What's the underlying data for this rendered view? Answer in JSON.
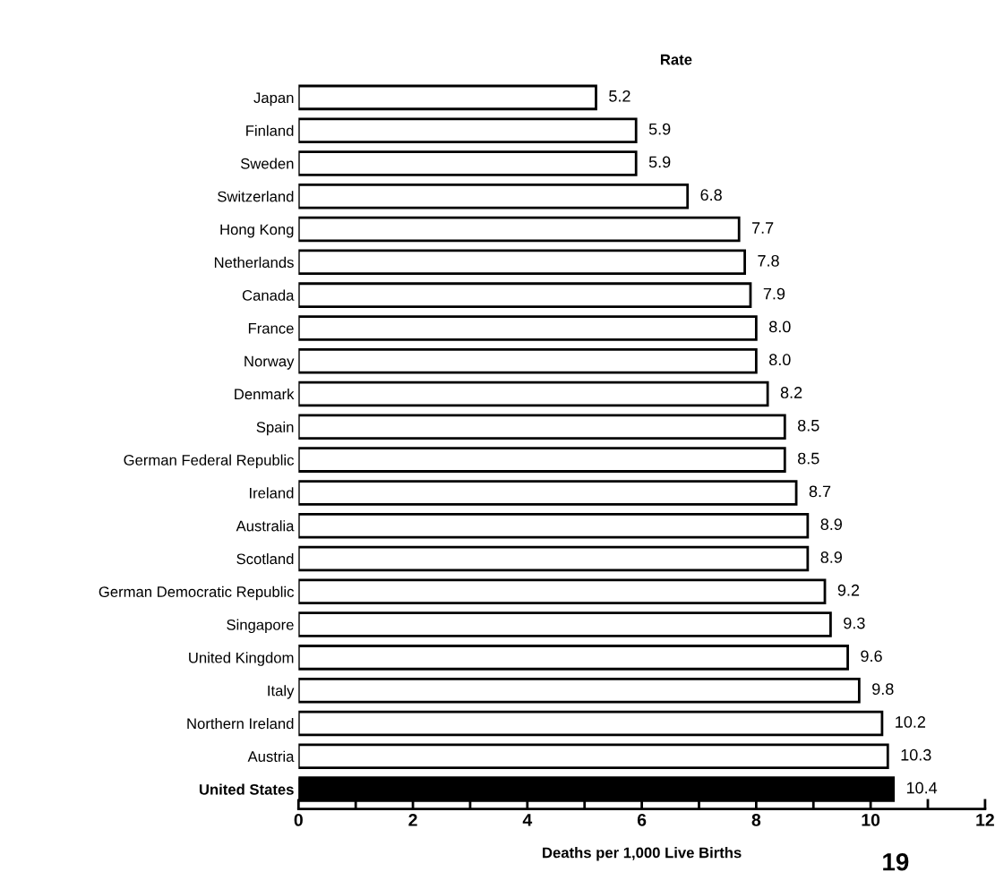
{
  "chart_data": {
    "type": "bar",
    "orientation": "horizontal",
    "xlabel": "Deaths per 1,000 Live Births",
    "categories": [
      "Japan",
      "Finland",
      "Sweden",
      "Switzerland",
      "Hong Kong",
      "Netherlands",
      "Canada",
      "France",
      "Norway",
      "Denmark",
      "Spain",
      "German Federal Republic",
      "Ireland",
      "Australia",
      "Scotland",
      "German Democratic Republic",
      "Singapore",
      "United Kingdom",
      "Italy",
      "Northern Ireland",
      "Austria",
      "United States"
    ],
    "values": [
      5.2,
      5.9,
      5.9,
      6.8,
      7.7,
      7.8,
      7.9,
      8.0,
      8.0,
      8.2,
      8.5,
      8.5,
      8.7,
      8.9,
      8.9,
      9.2,
      9.3,
      9.6,
      9.8,
      10.2,
      10.3,
      10.4
    ],
    "colors": [
      "#ffffff",
      "#ffffff",
      "#ffffff",
      "#ffffff",
      "#ffffff",
      "#ffffff",
      "#ffffff",
      "#ffffff",
      "#ffffff",
      "#ffffff",
      "#ffffff",
      "#ffffff",
      "#ffffff",
      "#ffffff",
      "#ffffff",
      "#ffffff",
      "#ffffff",
      "#ffffff",
      "#ffffff",
      "#ffffff",
      "#ffffff",
      "#000000"
    ],
    "value_labels": [
      "5.2",
      "5.9",
      "5.9",
      "6.8",
      "7.7",
      "7.8",
      "7.9",
      "8.0",
      "8.0",
      "8.2",
      "8.5",
      "8.5",
      "8.7",
      "8.9",
      "8.9",
      "9.2",
      "9.3",
      "9.6",
      "9.8",
      "10.2",
      "10.3",
      "10.4"
    ],
    "xlim": [
      0,
      12
    ],
    "xticks": [
      0,
      {
        "value": 1,
        "label": null
      },
      2,
      {
        "value": 3,
        "label": null
      },
      4,
      {
        "value": 5,
        "label": null
      },
      6,
      {
        "value": 7,
        "label": null
      },
      8,
      {
        "value": 9,
        "label": null
      },
      10,
      {
        "value": 11,
        "label": null
      },
      12
    ],
    "annotations": [
      "Rate",
      "19"
    ],
    "grid": false,
    "legend": false
  }
}
